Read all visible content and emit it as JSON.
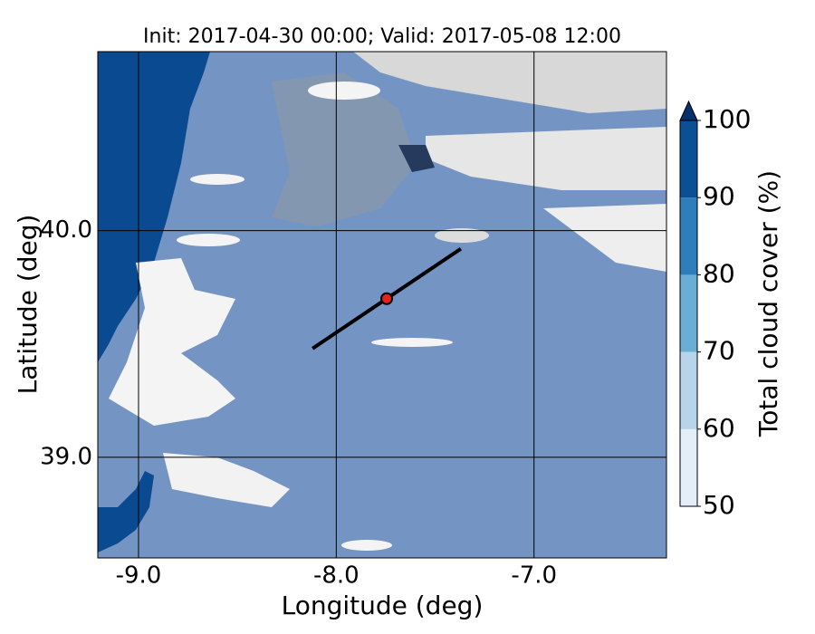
{
  "chart_data": {
    "type": "map",
    "title": "Init: 2017-04-30 00:00; Valid: 2017-05-08 12:00",
    "xlabel": "Longitude (deg)",
    "ylabel": "Latitude (deg)",
    "xlim": [
      -9.206,
      -6.33
    ],
    "ylim": [
      38.556,
      40.79
    ],
    "xticks": [
      {
        "value": -9,
        "label": "-9.0"
      },
      {
        "value": -8,
        "label": "-8.0"
      },
      {
        "value": -7,
        "label": "-7.0"
      }
    ],
    "yticks": [
      {
        "value": 39,
        "label": "39.0"
      },
      {
        "value": 40,
        "label": "40.0"
      }
    ],
    "grid": true,
    "transect": {
      "x": [
        -8.12,
        -7.37
      ],
      "y": [
        39.48,
        39.92
      ],
      "color": "#000000"
    },
    "point": {
      "x": -7.745,
      "y": 39.7,
      "color": "#e8221b"
    },
    "colorbar": {
      "label": "Total cloud cover (%)",
      "levels": [
        50,
        60,
        70,
        80,
        90,
        100
      ],
      "colors": [
        "#e3eef8",
        "#b7d4ea",
        "#6aaed6",
        "#2e7ebc",
        "#0b4f94"
      ],
      "extend_color": "#08306b"
    }
  }
}
